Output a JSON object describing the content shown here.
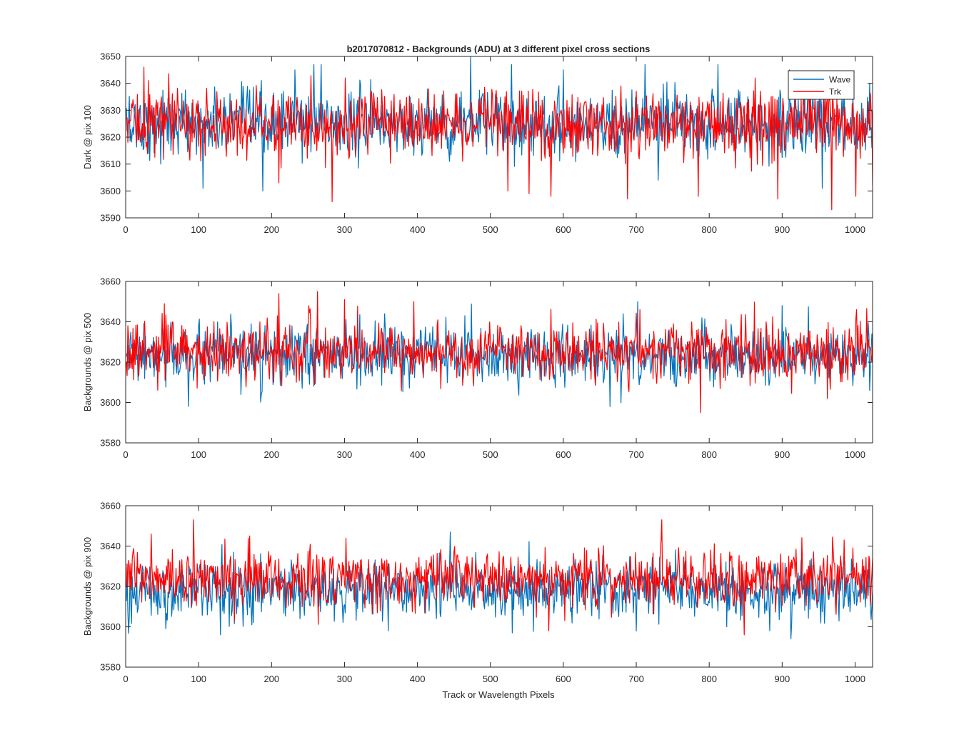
{
  "figure": {
    "title": "b2017070812 - Backgrounds (ADU) at 3 different pixel cross sections",
    "xlabel": "Track or Wavelength Pixels"
  },
  "legend": {
    "location": "top-right",
    "entries": [
      {
        "name": "Wave",
        "color": "#0072BD"
      },
      {
        "name": "Trk",
        "color": "#FF0000"
      }
    ]
  },
  "chart_data": [
    {
      "type": "line",
      "title": "b2017070812 - Backgrounds (ADU) at 3 different pixel cross sections",
      "xlabel": "",
      "ylabel": "Dark @ pix 100",
      "xlim": [
        0,
        1024
      ],
      "ylim": [
        3590,
        3650
      ],
      "xticks": [
        0,
        100,
        200,
        300,
        400,
        500,
        600,
        700,
        800,
        900,
        1000
      ],
      "yticks": [
        3590,
        3600,
        3610,
        3620,
        3630,
        3640,
        3650
      ],
      "legend_visible": true,
      "series": [
        {
          "name": "Wave",
          "color": "#0072BD",
          "n_points": 1024,
          "mean": 3625,
          "spread": 6,
          "min": 3600,
          "max": 3650,
          "spikes": [
            [
              106,
              3601
            ],
            [
              188,
              3600
            ],
            [
              232,
              3645
            ],
            [
              258,
              3647
            ],
            [
              268,
              3647
            ],
            [
              473,
              3650
            ],
            [
              529,
              3647
            ],
            [
              600,
              3645
            ],
            [
              712,
              3647
            ],
            [
              730,
              3604
            ],
            [
              812,
              3647
            ],
            [
              910,
              3645
            ],
            [
              955,
              3601
            ],
            [
              1020,
              3640
            ]
          ]
        },
        {
          "name": "Trk",
          "color": "#FF0000",
          "n_points": 1024,
          "mean": 3625,
          "spread": 6,
          "min": 3593,
          "max": 3646,
          "spikes": [
            [
              25,
              3646
            ],
            [
              31,
              3641
            ],
            [
              210,
              3603
            ],
            [
              283,
              3596
            ],
            [
              301,
              3642
            ],
            [
              524,
              3600
            ],
            [
              553,
              3599
            ],
            [
              583,
              3598
            ],
            [
              688,
              3597
            ],
            [
              785,
              3598
            ],
            [
              894,
              3597
            ],
            [
              968,
              3593
            ],
            [
              1001,
              3598
            ],
            [
              1024,
              3602
            ]
          ]
        }
      ]
    },
    {
      "type": "line",
      "title": "",
      "xlabel": "",
      "ylabel": "Backgrounds @ pix 500",
      "xlim": [
        0,
        1024
      ],
      "ylim": [
        3580,
        3660
      ],
      "xticks": [
        0,
        100,
        200,
        300,
        400,
        500,
        600,
        700,
        800,
        900,
        1000
      ],
      "yticks": [
        3580,
        3600,
        3620,
        3640,
        3660
      ],
      "legend_visible": false,
      "series": [
        {
          "name": "Wave",
          "color": "#0072BD",
          "n_points": 1024,
          "mean": 3623,
          "spread": 7,
          "min": 3598,
          "max": 3650,
          "spikes": [
            [
              86,
              3598
            ],
            [
              355,
              3644
            ],
            [
              465,
              3643
            ],
            [
              664,
              3598
            ],
            [
              682,
              3644
            ],
            [
              702,
              3650
            ],
            [
              790,
              3642
            ],
            [
              900,
              3648
            ]
          ]
        },
        {
          "name": "Trk",
          "color": "#FF0000",
          "n_points": 1024,
          "mean": 3625,
          "spread": 7,
          "min": 3595,
          "max": 3655,
          "spikes": [
            [
              53,
              3649
            ],
            [
              210,
              3654
            ],
            [
              263,
              3655
            ],
            [
              300,
              3651
            ],
            [
              395,
              3650
            ],
            [
              705,
              3646
            ],
            [
              788,
              3595
            ],
            [
              962,
              3602
            ]
          ]
        }
      ]
    },
    {
      "type": "line",
      "title": "",
      "xlabel": "Track or Wavelength Pixels",
      "ylabel": "Backgrounds @ pix 900",
      "xlim": [
        0,
        1024
      ],
      "ylim": [
        3580,
        3660
      ],
      "xticks": [
        0,
        100,
        200,
        300,
        400,
        500,
        600,
        700,
        800,
        900,
        1000
      ],
      "yticks": [
        3580,
        3600,
        3620,
        3640,
        3660
      ],
      "legend_visible": false,
      "series": [
        {
          "name": "Wave",
          "color": "#0072BD",
          "n_points": 1024,
          "mean": 3618,
          "spread": 7,
          "min": 3594,
          "max": 3647,
          "spikes": [
            [
              55,
              3599
            ],
            [
              130,
              3596
            ],
            [
              360,
              3598
            ],
            [
              445,
              3647
            ],
            [
              530,
              3597
            ],
            [
              912,
              3594
            ],
            [
              1020,
              3622
            ]
          ]
        },
        {
          "name": "Trk",
          "color": "#FF0000",
          "n_points": 1024,
          "mean": 3624,
          "spread": 7,
          "min": 3596,
          "max": 3653,
          "spikes": [
            [
              35,
              3646
            ],
            [
              93,
              3653
            ],
            [
              170,
              3645
            ],
            [
              735,
              3653
            ],
            [
              580,
              3598
            ],
            [
              848,
              3596
            ],
            [
              985,
              3643
            ]
          ]
        }
      ]
    }
  ]
}
